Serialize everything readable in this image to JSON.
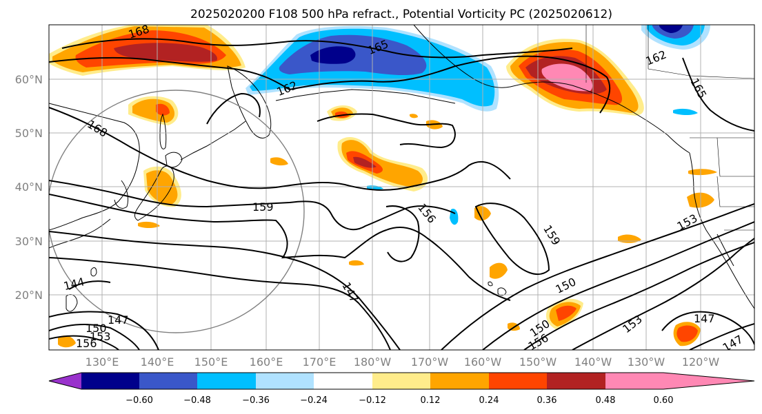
{
  "title": "2025020200 F108 500 hPa refract., Potential Vorticity PC (2025020612)",
  "lat_labels": [
    "60°N",
    "50°N",
    "40°N",
    "30°N",
    "20°N"
  ],
  "lon_labels": [
    "130°E",
    "140°E",
    "150°E",
    "160°E",
    "170°E",
    "180°W",
    "170°W",
    "160°W",
    "150°W",
    "140°W",
    "130°W",
    "120°W"
  ],
  "contour_labels": [
    "168",
    "165",
    "162",
    "168",
    "159",
    "156",
    "159",
    "153",
    "150",
    "147",
    "144",
    "147",
    "150",
    "153",
    "156",
    "150",
    "153",
    "156",
    "147",
    "147",
    "162",
    "165"
  ],
  "colorbar": {
    "ticks": [
      "−0.60",
      "−0.48",
      "−0.36",
      "−0.24",
      "−0.12",
      "0.12",
      "0.24",
      "0.36",
      "0.48",
      "0.60"
    ],
    "colors": [
      "#9932cc",
      "#00008b",
      "#3a57c9",
      "#00bfff",
      "#b0e2ff",
      "#ffffff",
      "#ffec8b",
      "#ffa500",
      "#ff4500",
      "#b22222",
      "#ff88b4"
    ]
  },
  "colors": {
    "positive_low": "#ffec8b",
    "positive_mid": "#ffa500",
    "positive_high": "#ff4500",
    "positive_top": "#b22222",
    "positive_max": "#ff88b4",
    "negative_low": "#b0e2ff",
    "negative_mid": "#00bfff",
    "negative_high": "#3a57c9",
    "negative_top": "#00008b"
  }
}
